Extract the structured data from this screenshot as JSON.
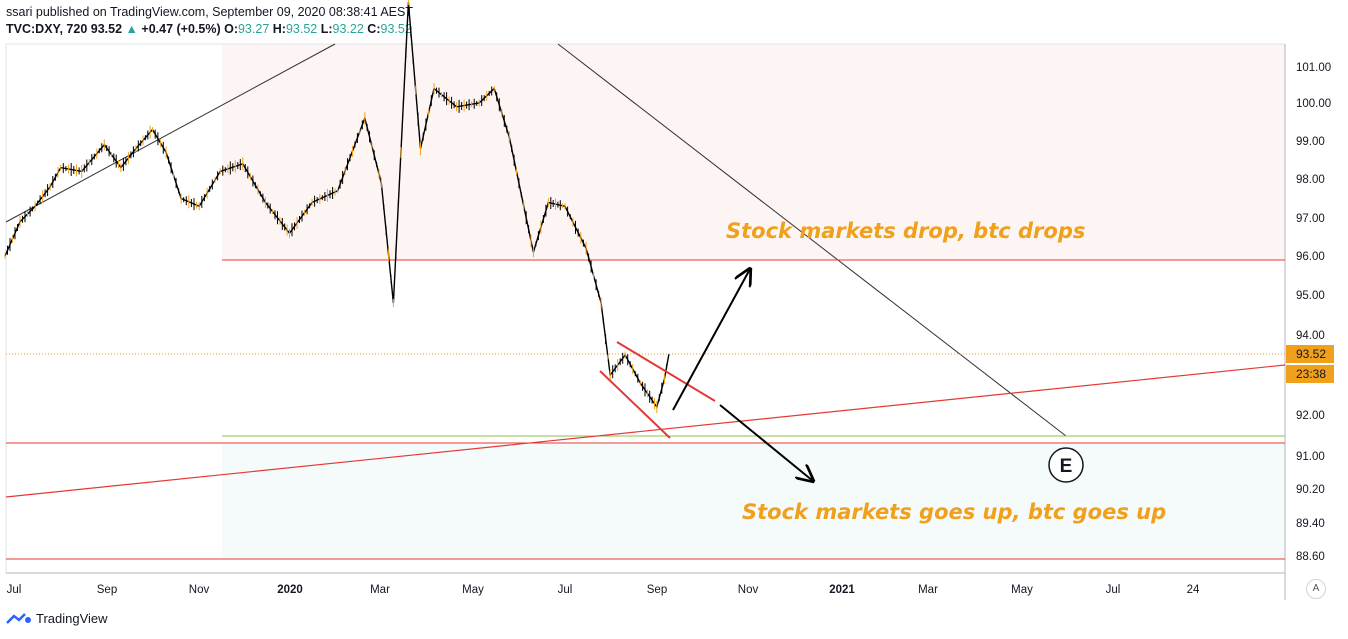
{
  "header": {
    "published": "ssari published on TradingView.com, September 09, 2020 08:38:41 AEST",
    "symbol": "TVC:DXY, 720",
    "last": "93.52",
    "change": "+0.47 (+0.5%)",
    "o_label": "O:",
    "o_val": "93.27",
    "h_label": "H:",
    "h_val": "93.52",
    "l_label": "L:",
    "l_val": "93.22",
    "c_label": "C:",
    "c_val": "93.52"
  },
  "footer": {
    "brand": "TradingView"
  },
  "autoscale_label": "A",
  "chart_data": {
    "type": "line",
    "symbol": "TVC:DXY",
    "interval": "720",
    "y_ticks": [
      "101.00",
      "100.00",
      "99.00",
      "98.00",
      "97.00",
      "96.00",
      "95.00",
      "94.00",
      "92.00",
      "91.00",
      "90.20",
      "89.40",
      "88.60"
    ],
    "x_ticks": [
      "Jul",
      "Sep",
      "Nov",
      "2020",
      "Mar",
      "May",
      "Jul",
      "Sep",
      "Nov",
      "2021",
      "Mar",
      "May",
      "Jul",
      "24"
    ],
    "series": [
      {
        "values": [
          [
            "2019-06-25",
            96.0
          ],
          [
            "2019-07-05",
            96.9
          ],
          [
            "2019-07-15",
            97.3
          ],
          [
            "2019-07-25",
            97.8
          ],
          [
            "2019-08-01",
            98.3
          ],
          [
            "2019-08-15",
            98.2
          ],
          [
            "2019-08-30",
            98.9
          ],
          [
            "2019-09-10",
            98.3
          ],
          [
            "2019-09-20",
            98.8
          ],
          [
            "2019-10-01",
            99.3
          ],
          [
            "2019-10-10",
            98.7
          ],
          [
            "2019-10-20",
            97.5
          ],
          [
            "2019-11-01",
            97.3
          ],
          [
            "2019-11-15",
            98.2
          ],
          [
            "2019-11-30",
            98.4
          ],
          [
            "2019-12-15",
            97.4
          ],
          [
            "2019-12-31",
            96.6
          ],
          [
            "2020-01-15",
            97.4
          ],
          [
            "2020-02-01",
            97.7
          ],
          [
            "2020-02-19",
            99.6
          ],
          [
            "2020-03-01",
            97.9
          ],
          [
            "2020-03-09",
            94.8
          ],
          [
            "2020-03-19",
            102.8
          ],
          [
            "2020-03-27",
            98.8
          ],
          [
            "2020-04-05",
            100.4
          ],
          [
            "2020-04-20",
            99.9
          ],
          [
            "2020-05-05",
            100.0
          ],
          [
            "2020-05-15",
            100.4
          ],
          [
            "2020-05-25",
            99.1
          ],
          [
            "2020-06-10",
            96.1
          ],
          [
            "2020-06-20",
            97.4
          ],
          [
            "2020-07-01",
            97.3
          ],
          [
            "2020-07-15",
            96.2
          ],
          [
            "2020-07-25",
            94.8
          ],
          [
            "2020-07-31",
            93.0
          ],
          [
            "2020-08-10",
            93.5
          ],
          [
            "2020-08-20",
            92.8
          ],
          [
            "2020-08-31",
            92.2
          ],
          [
            "2020-09-05",
            92.9
          ],
          [
            "2020-09-08",
            93.52
          ]
        ]
      }
    ],
    "last_price_label": "93.52",
    "countdown_label": "23:38",
    "annotations": [
      {
        "text": "Stock markets drop, btc drops",
        "color": "#f0a01a"
      },
      {
        "text": "Stock markets goes up, btc goes up",
        "color": "#f0a01a"
      },
      {
        "text": "E",
        "shape": "circle"
      }
    ],
    "colors": {
      "up": "#26a69a",
      "down": "#000000",
      "candle_wick": "#000000",
      "highlight": "#f0a01a",
      "red_lines": "#e53935",
      "bg_zone_top": "#fdf5f3",
      "bg_zone_bottom": "#f5fafa"
    }
  }
}
